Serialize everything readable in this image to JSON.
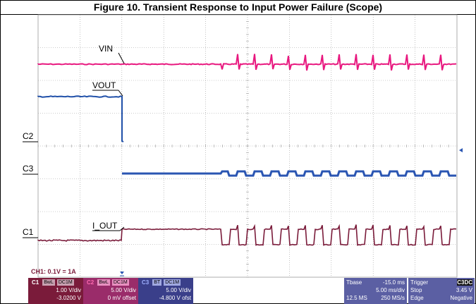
{
  "title": "Figure 10. Transient Response to Input Power Failure (Scope)",
  "traces": {
    "vin_label": "VIN",
    "vout_label": "VOUT",
    "iout_label": "I_OUT",
    "markers": {
      "c2": "C2",
      "c3": "C3",
      "c1": "C1"
    }
  },
  "scale_note": "CH1: 0.1V = 1A",
  "channels": [
    {
      "id": "C1",
      "tag": "C1",
      "b1": "BwL",
      "b2": "DC1M",
      "vdiv": "1.00 V/div",
      "offset": "-3.0200 V",
      "color": "#7a1b3a"
    },
    {
      "id": "C2",
      "tag": "C2",
      "b1": "BwL",
      "b2": "DC1M",
      "vdiv": "5.00 V/div",
      "offset": "0 mV offset",
      "color": "#e8187f"
    },
    {
      "id": "C3",
      "tag": "C3",
      "b1": "BT",
      "b2": "DC1M",
      "vdiv": "5.00 V/div",
      "offset": "-4.800 V ofst",
      "color": "#3a4db0"
    }
  ],
  "timebase": {
    "label": "Tbase",
    "delay": "-15.0 ms",
    "tdiv": "5.00 ms/div",
    "samples": "12.5 MS",
    "rate": "250 MS/s"
  },
  "trigger": {
    "label": "Trigger",
    "source": "C3",
    "coupling": "DC",
    "mode": "Stop",
    "level": "3.45 V",
    "type": "Edge",
    "slope": "Negative"
  },
  "colors": {
    "vin": "#e8187f",
    "vout": "#1f4fa8",
    "ch3": "#2a55b2",
    "iout": "#7a1b3a",
    "grid": "#9a9a9a",
    "panel": "#5b5fa3"
  }
}
